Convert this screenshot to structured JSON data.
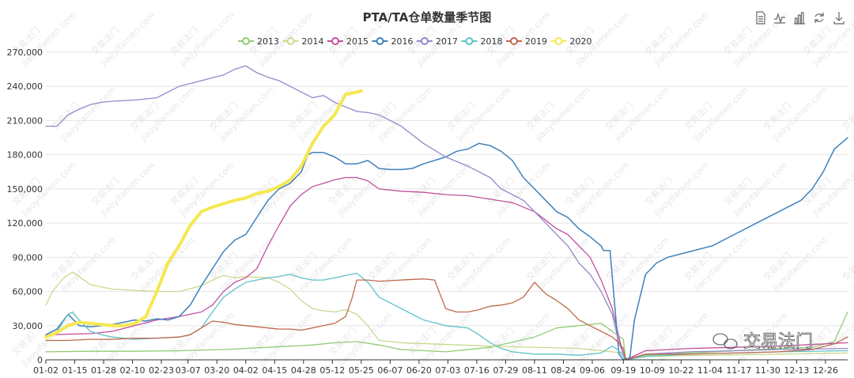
{
  "toolbar": {
    "icons": [
      "data-view-icon",
      "line-chart-icon",
      "bar-chart-icon",
      "refresh-icon",
      "download-icon"
    ]
  },
  "watermark": {
    "brand": "交易法门",
    "url": "jiaoyifamen.com",
    "badge": "交易法门"
  },
  "colors": {
    "axis": "#333333",
    "grid": "#e5e5e5"
  },
  "chart_data": {
    "type": "line",
    "title": "PTA/TA仓单数量季节图",
    "xlabel": "",
    "ylabel": "",
    "ylim": [
      0,
      270000
    ],
    "ytick_values": [
      0,
      30000,
      60000,
      90000,
      120000,
      150000,
      180000,
      210000,
      240000,
      270000
    ],
    "ytick_labels": [
      "0",
      "30,000",
      "60,000",
      "90,000",
      "120,000",
      "150,000",
      "180,000",
      "210,000",
      "240,000",
      "270,000"
    ],
    "xlim": [
      0,
      361
    ],
    "xtick_days": [
      0,
      13,
      26,
      39,
      52,
      64,
      77,
      90,
      103,
      116,
      129,
      142,
      155,
      168,
      181,
      194,
      207,
      220,
      233,
      246,
      260,
      273,
      286,
      299,
      312,
      325,
      338,
      351,
      364
    ],
    "xtick_labels": [
      "01-02",
      "01-15",
      "01-28",
      "02-10",
      "02-23",
      "03-07",
      "03-20",
      "04-02",
      "04-15",
      "04-28",
      "05-12",
      "05-25",
      "06-07",
      "06-20",
      "07-03",
      "07-16",
      "07-29",
      "08-11",
      "08-24",
      "09-06",
      "09-19",
      "10-09",
      "10-22",
      "11-04",
      "11-17",
      "11-30",
      "12-13",
      "12-26",
      ""
    ],
    "legend": [
      "2013",
      "2014",
      "2015",
      "2016",
      "2017",
      "2018",
      "2019",
      "2020"
    ],
    "series": [
      {
        "name": "2013",
        "color": "#91cc75",
        "width": 1.3,
        "x": [
          0,
          20,
          40,
          60,
          80,
          100,
          120,
          130,
          140,
          150,
          160,
          180,
          200,
          220,
          230,
          250,
          260,
          261,
          270,
          290,
          310,
          330,
          345,
          355,
          361
        ],
        "y": [
          7000,
          7500,
          7500,
          8000,
          9000,
          11000,
          13000,
          15000,
          16000,
          13000,
          9000,
          7000,
          11000,
          20000,
          28000,
          32000,
          18000,
          0,
          4000,
          6000,
          8000,
          10000,
          11000,
          16000,
          42000
        ]
      },
      {
        "name": "2014",
        "color": "#c8d98f",
        "width": 1.3,
        "x": [
          0,
          3,
          8,
          12,
          15,
          20,
          30,
          40,
          50,
          60,
          70,
          75,
          80,
          85,
          90,
          100,
          105,
          110,
          115,
          120,
          125,
          130,
          135,
          140,
          145,
          150,
          160,
          200,
          240,
          260,
          261,
          270,
          300,
          330,
          361
        ],
        "y": [
          48000,
          60000,
          72000,
          77000,
          73000,
          66000,
          62000,
          61000,
          60000,
          60000,
          65000,
          70000,
          74000,
          72000,
          73000,
          72000,
          68000,
          62000,
          52000,
          45000,
          43000,
          42000,
          44000,
          40000,
          30000,
          17000,
          15000,
          12000,
          10000,
          6000,
          0,
          3000,
          4000,
          5000,
          6000
        ]
      },
      {
        "name": "2015",
        "color": "#c050a0",
        "width": 1.3,
        "x": [
          0,
          20,
          30,
          40,
          50,
          60,
          70,
          75,
          80,
          85,
          90,
          95,
          100,
          105,
          110,
          115,
          120,
          125,
          130,
          135,
          140,
          145,
          150,
          160,
          170,
          180,
          190,
          200,
          210,
          220,
          230,
          235,
          240,
          245,
          250,
          255,
          258,
          260,
          261,
          270,
          290,
          310,
          330,
          361
        ],
        "y": [
          22000,
          23000,
          25000,
          30000,
          35000,
          38000,
          42000,
          48000,
          60000,
          68000,
          72000,
          80000,
          100000,
          118000,
          135000,
          145000,
          152000,
          155000,
          158000,
          160000,
          160000,
          157000,
          150000,
          148000,
          147000,
          145000,
          144000,
          141000,
          138000,
          130000,
          115000,
          110000,
          100000,
          90000,
          70000,
          45000,
          20000,
          5000,
          0,
          8000,
          10000,
          11000,
          12000,
          15000
        ]
      },
      {
        "name": "2016",
        "color": "#3f81bc",
        "width": 1.5,
        "x": [
          0,
          5,
          10,
          15,
          20,
          25,
          30,
          35,
          40,
          45,
          50,
          55,
          60,
          65,
          70,
          75,
          80,
          85,
          90,
          95,
          100,
          105,
          110,
          115,
          118,
          120,
          125,
          130,
          135,
          140,
          145,
          150,
          155,
          160,
          165,
          170,
          175,
          180,
          185,
          190,
          195,
          200,
          205,
          210,
          215,
          220,
          225,
          230,
          235,
          240,
          245,
          250,
          251,
          254,
          258,
          260,
          261,
          262,
          263,
          265,
          270,
          275,
          280,
          290,
          300,
          310,
          320,
          330,
          340,
          345,
          350,
          355,
          358,
          361
        ],
        "y": [
          22000,
          27000,
          40000,
          30000,
          29000,
          30000,
          31000,
          33000,
          35000,
          34000,
          36000,
          35000,
          38000,
          48000,
          65000,
          80000,
          95000,
          105000,
          110000,
          125000,
          140000,
          150000,
          155000,
          165000,
          180000,
          182000,
          182000,
          178000,
          172000,
          172000,
          175000,
          168000,
          167000,
          167000,
          168000,
          172000,
          175000,
          178000,
          183000,
          185000,
          190000,
          188000,
          183000,
          175000,
          160000,
          150000,
          140000,
          130000,
          125000,
          115000,
          108000,
          100000,
          96000,
          96000,
          5000,
          0,
          2000,
          0,
          3000,
          35000,
          75000,
          85000,
          90000,
          95000,
          100000,
          110000,
          120000,
          130000,
          140000,
          150000,
          165000,
          185000,
          190000,
          195000
        ]
      },
      {
        "name": "2017",
        "color": "#9188c8",
        "width": 1.3,
        "x": [
          0,
          5,
          10,
          15,
          20,
          25,
          30,
          40,
          50,
          60,
          70,
          80,
          85,
          90,
          95,
          100,
          105,
          110,
          115,
          120,
          125,
          130,
          135,
          140,
          145,
          150,
          160,
          170,
          180,
          190,
          200,
          205,
          210,
          215,
          220,
          225,
          230,
          235,
          240,
          245,
          250,
          255,
          258,
          260,
          261,
          270,
          290,
          310,
          330,
          361
        ],
        "y": [
          205000,
          205000,
          215000,
          220000,
          224000,
          226000,
          227000,
          228000,
          230000,
          240000,
          245000,
          250000,
          255000,
          258000,
          252000,
          248000,
          245000,
          240000,
          235000,
          230000,
          232000,
          226000,
          222000,
          218000,
          217000,
          215000,
          205000,
          190000,
          178000,
          170000,
          160000,
          150000,
          145000,
          140000,
          130000,
          120000,
          110000,
          100000,
          85000,
          75000,
          60000,
          40000,
          15000,
          5000,
          0,
          5000,
          7000,
          8000,
          9000,
          10000
        ]
      },
      {
        "name": "2018",
        "color": "#5fc2c8",
        "width": 1.3,
        "x": [
          0,
          5,
          10,
          12,
          15,
          20,
          25,
          30,
          40,
          50,
          60,
          65,
          70,
          75,
          80,
          85,
          90,
          95,
          100,
          105,
          110,
          115,
          120,
          125,
          130,
          135,
          140,
          145,
          150,
          160,
          170,
          180,
          190,
          195,
          200,
          205,
          210,
          215,
          220,
          230,
          240,
          250,
          255,
          258,
          260,
          261,
          270,
          290,
          310,
          330,
          361
        ],
        "y": [
          20000,
          25000,
          40000,
          42000,
          35000,
          25000,
          22000,
          20000,
          18000,
          19000,
          20000,
          22000,
          28000,
          42000,
          55000,
          62000,
          68000,
          70000,
          72000,
          73000,
          75000,
          72000,
          70000,
          70000,
          72000,
          74000,
          76000,
          68000,
          55000,
          45000,
          35000,
          30000,
          28000,
          22000,
          15000,
          10000,
          7000,
          6000,
          5000,
          5000,
          4000,
          6000,
          12000,
          8000,
          3000,
          0,
          3000,
          5000,
          6000,
          7000,
          8000
        ]
      },
      {
        "name": "2019",
        "color": "#c0684c",
        "width": 1.3,
        "x": [
          0,
          10,
          20,
          30,
          40,
          50,
          60,
          65,
          70,
          75,
          80,
          85,
          90,
          95,
          100,
          105,
          110,
          115,
          120,
          125,
          130,
          135,
          138,
          140,
          145,
          150,
          160,
          170,
          175,
          178,
          180,
          185,
          190,
          195,
          200,
          205,
          210,
          215,
          220,
          225,
          230,
          235,
          240,
          245,
          250,
          255,
          258,
          260,
          261,
          270,
          290,
          310,
          330,
          345,
          355,
          361
        ],
        "y": [
          17000,
          17000,
          18000,
          18000,
          19000,
          19000,
          20000,
          22000,
          28000,
          34000,
          33000,
          31000,
          30000,
          29000,
          28000,
          27000,
          27000,
          26000,
          28000,
          30000,
          32000,
          38000,
          55000,
          70000,
          70000,
          69000,
          70000,
          71000,
          70000,
          55000,
          45000,
          42000,
          42000,
          44000,
          47000,
          48000,
          50000,
          55000,
          68000,
          58000,
          52000,
          45000,
          35000,
          30000,
          25000,
          20000,
          15000,
          10000,
          0,
          5000,
          5000,
          6000,
          7000,
          9000,
          14000,
          20000
        ]
      },
      {
        "name": "2020",
        "color": "#f5e751",
        "width": 4,
        "x": [
          0,
          5,
          10,
          15,
          20,
          25,
          30,
          35,
          40,
          45,
          50,
          55,
          60,
          65,
          70,
          75,
          80,
          85,
          90,
          95,
          100,
          105,
          110,
          115,
          120,
          125,
          130,
          135,
          140,
          142
        ],
        "y": [
          20000,
          24000,
          30000,
          33000,
          32000,
          31000,
          30000,
          30000,
          32000,
          38000,
          60000,
          85000,
          100000,
          118000,
          130000,
          134000,
          137000,
          140000,
          142000,
          146000,
          148000,
          152000,
          158000,
          170000,
          190000,
          205000,
          215000,
          233000,
          235000,
          236000
        ]
      }
    ]
  }
}
